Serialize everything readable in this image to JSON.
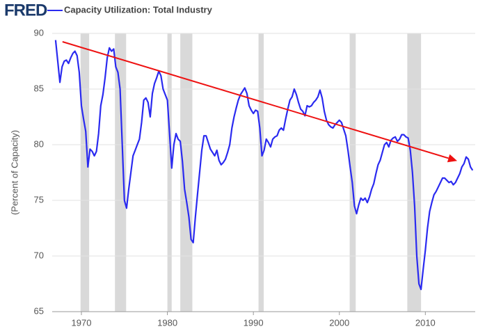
{
  "chart_data": {
    "type": "line",
    "logo": "FRED",
    "title": "Capacity Utilization: Total Industry",
    "y_label": "(Percent of Capacity)",
    "xlim": [
      1966.6,
      2015.8
    ],
    "xticks": [
      1970,
      1980,
      1990,
      2000,
      2010
    ],
    "ylim": [
      65,
      90
    ],
    "yticks": [
      65,
      70,
      75,
      80,
      85,
      90
    ],
    "grid": true,
    "recession_color": "#d9d9d9",
    "recessions": [
      {
        "start": 1969.9,
        "end": 1970.9
      },
      {
        "start": 1973.9,
        "end": 1975.2
      },
      {
        "start": 1980.0,
        "end": 1980.5
      },
      {
        "start": 1981.5,
        "end": 1982.9
      },
      {
        "start": 1990.6,
        "end": 1991.2
      },
      {
        "start": 2001.2,
        "end": 2001.9
      },
      {
        "start": 2007.9,
        "end": 2009.5
      }
    ],
    "trend": {
      "x": [
        1967.8,
        2013.7
      ],
      "y": [
        89.25,
        78.55
      ],
      "color": "#ee1111"
    },
    "x": [
      1967.0,
      1967.25,
      1967.5,
      1967.75,
      1968.0,
      1968.25,
      1968.5,
      1968.75,
      1969.0,
      1969.25,
      1969.5,
      1969.75,
      1970.0,
      1970.25,
      1970.5,
      1970.75,
      1971.0,
      1971.25,
      1971.5,
      1971.75,
      1972.0,
      1972.25,
      1972.5,
      1972.75,
      1973.0,
      1973.25,
      1973.5,
      1973.75,
      1974.0,
      1974.25,
      1974.5,
      1974.75,
      1975.0,
      1975.25,
      1975.5,
      1975.75,
      1976.0,
      1976.25,
      1976.5,
      1976.75,
      1977.0,
      1977.25,
      1977.5,
      1977.75,
      1978.0,
      1978.25,
      1978.5,
      1978.75,
      1979.0,
      1979.25,
      1979.5,
      1979.75,
      1980.0,
      1980.25,
      1980.5,
      1980.75,
      1981.0,
      1981.25,
      1981.5,
      1981.75,
      1982.0,
      1982.25,
      1982.5,
      1982.75,
      1983.0,
      1983.25,
      1983.5,
      1983.75,
      1984.0,
      1984.25,
      1984.5,
      1984.75,
      1985.0,
      1985.25,
      1985.5,
      1985.75,
      1986.0,
      1986.25,
      1986.5,
      1986.75,
      1987.0,
      1987.25,
      1987.5,
      1987.75,
      1988.0,
      1988.25,
      1988.5,
      1988.75,
      1989.0,
      1989.25,
      1989.5,
      1989.75,
      1990.0,
      1990.25,
      1990.5,
      1990.75,
      1991.0,
      1991.25,
      1991.5,
      1991.75,
      1992.0,
      1992.25,
      1992.5,
      1992.75,
      1993.0,
      1993.25,
      1993.5,
      1993.75,
      1994.0,
      1994.25,
      1994.5,
      1994.75,
      1995.0,
      1995.25,
      1995.5,
      1995.75,
      1996.0,
      1996.25,
      1996.5,
      1996.75,
      1997.0,
      1997.25,
      1997.5,
      1997.75,
      1998.0,
      1998.25,
      1998.5,
      1998.75,
      1999.0,
      1999.25,
      1999.5,
      1999.75,
      2000.0,
      2000.25,
      2000.5,
      2000.75,
      2001.0,
      2001.25,
      2001.5,
      2001.75,
      2002.0,
      2002.25,
      2002.5,
      2002.75,
      2003.0,
      2003.25,
      2003.5,
      2003.75,
      2004.0,
      2004.25,
      2004.5,
      2004.75,
      2005.0,
      2005.25,
      2005.5,
      2005.75,
      2006.0,
      2006.25,
      2006.5,
      2006.75,
      2007.0,
      2007.25,
      2007.5,
      2007.75,
      2008.0,
      2008.25,
      2008.5,
      2008.75,
      2009.0,
      2009.25,
      2009.5,
      2009.75,
      2010.0,
      2010.25,
      2010.5,
      2010.75,
      2011.0,
      2011.25,
      2011.5,
      2011.75,
      2012.0,
      2012.25,
      2012.5,
      2012.75,
      2013.0,
      2013.25,
      2013.5,
      2013.75,
      2014.0,
      2014.25,
      2014.5,
      2014.75,
      2015.0,
      2015.25,
      2015.5
    ],
    "series": [
      {
        "name": "Capacity Utilization: Total Industry",
        "color": "#2a2af0",
        "values": [
          89.4,
          87.5,
          85.6,
          87.0,
          87.5,
          87.6,
          87.3,
          87.8,
          88.2,
          88.4,
          88.0,
          86.5,
          83.5,
          82.3,
          81.2,
          78.0,
          79.6,
          79.4,
          79.0,
          79.4,
          81.0,
          83.5,
          84.5,
          86.0,
          87.8,
          88.7,
          88.4,
          88.6,
          87.0,
          86.5,
          85.0,
          80.0,
          75.0,
          74.3,
          76.0,
          77.5,
          79.0,
          79.5,
          80.0,
          80.5,
          82.0,
          84.0,
          84.2,
          83.8,
          82.5,
          84.6,
          85.5,
          86.0,
          86.6,
          86.2,
          85.0,
          84.5,
          84.0,
          81.0,
          77.9,
          80.0,
          81.0,
          80.5,
          80.3,
          78.5,
          76.0,
          74.8,
          73.5,
          71.5,
          71.2,
          73.5,
          75.5,
          77.5,
          79.5,
          80.8,
          80.8,
          80.2,
          79.6,
          79.3,
          79.0,
          79.5,
          78.6,
          78.2,
          78.4,
          78.7,
          79.3,
          80.0,
          81.5,
          82.5,
          83.3,
          84.0,
          84.5,
          84.8,
          85.1,
          84.6,
          83.5,
          83.1,
          82.8,
          83.1,
          83.0,
          81.5,
          79.0,
          79.5,
          80.5,
          80.2,
          79.8,
          80.5,
          80.7,
          80.8,
          81.3,
          81.5,
          81.3,
          82.3,
          83.2,
          84.0,
          84.3,
          85.0,
          84.5,
          83.8,
          83.2,
          83.0,
          82.6,
          83.5,
          83.4,
          83.5,
          83.8,
          84.0,
          84.3,
          84.9,
          84.2,
          83.0,
          82.2,
          81.8,
          81.6,
          81.5,
          81.8,
          82.0,
          82.2,
          82.0,
          81.4,
          80.8,
          79.5,
          78.0,
          76.6,
          74.5,
          73.8,
          74.6,
          75.2,
          75.0,
          75.2,
          74.8,
          75.3,
          76.0,
          76.5,
          77.4,
          78.2,
          78.6,
          79.3,
          80.0,
          80.2,
          79.8,
          80.4,
          80.6,
          80.7,
          80.3,
          80.5,
          80.9,
          80.9,
          80.7,
          80.6,
          79.5,
          77.5,
          74.5,
          70.0,
          67.5,
          67.0,
          68.8,
          70.5,
          72.5,
          74.0,
          74.8,
          75.5,
          75.8,
          76.2,
          76.6,
          77.0,
          77.0,
          76.8,
          76.6,
          76.7,
          76.4,
          76.6,
          77.0,
          77.4,
          78.0,
          78.3,
          78.9,
          78.7,
          78.0,
          77.7
        ]
      }
    ]
  }
}
